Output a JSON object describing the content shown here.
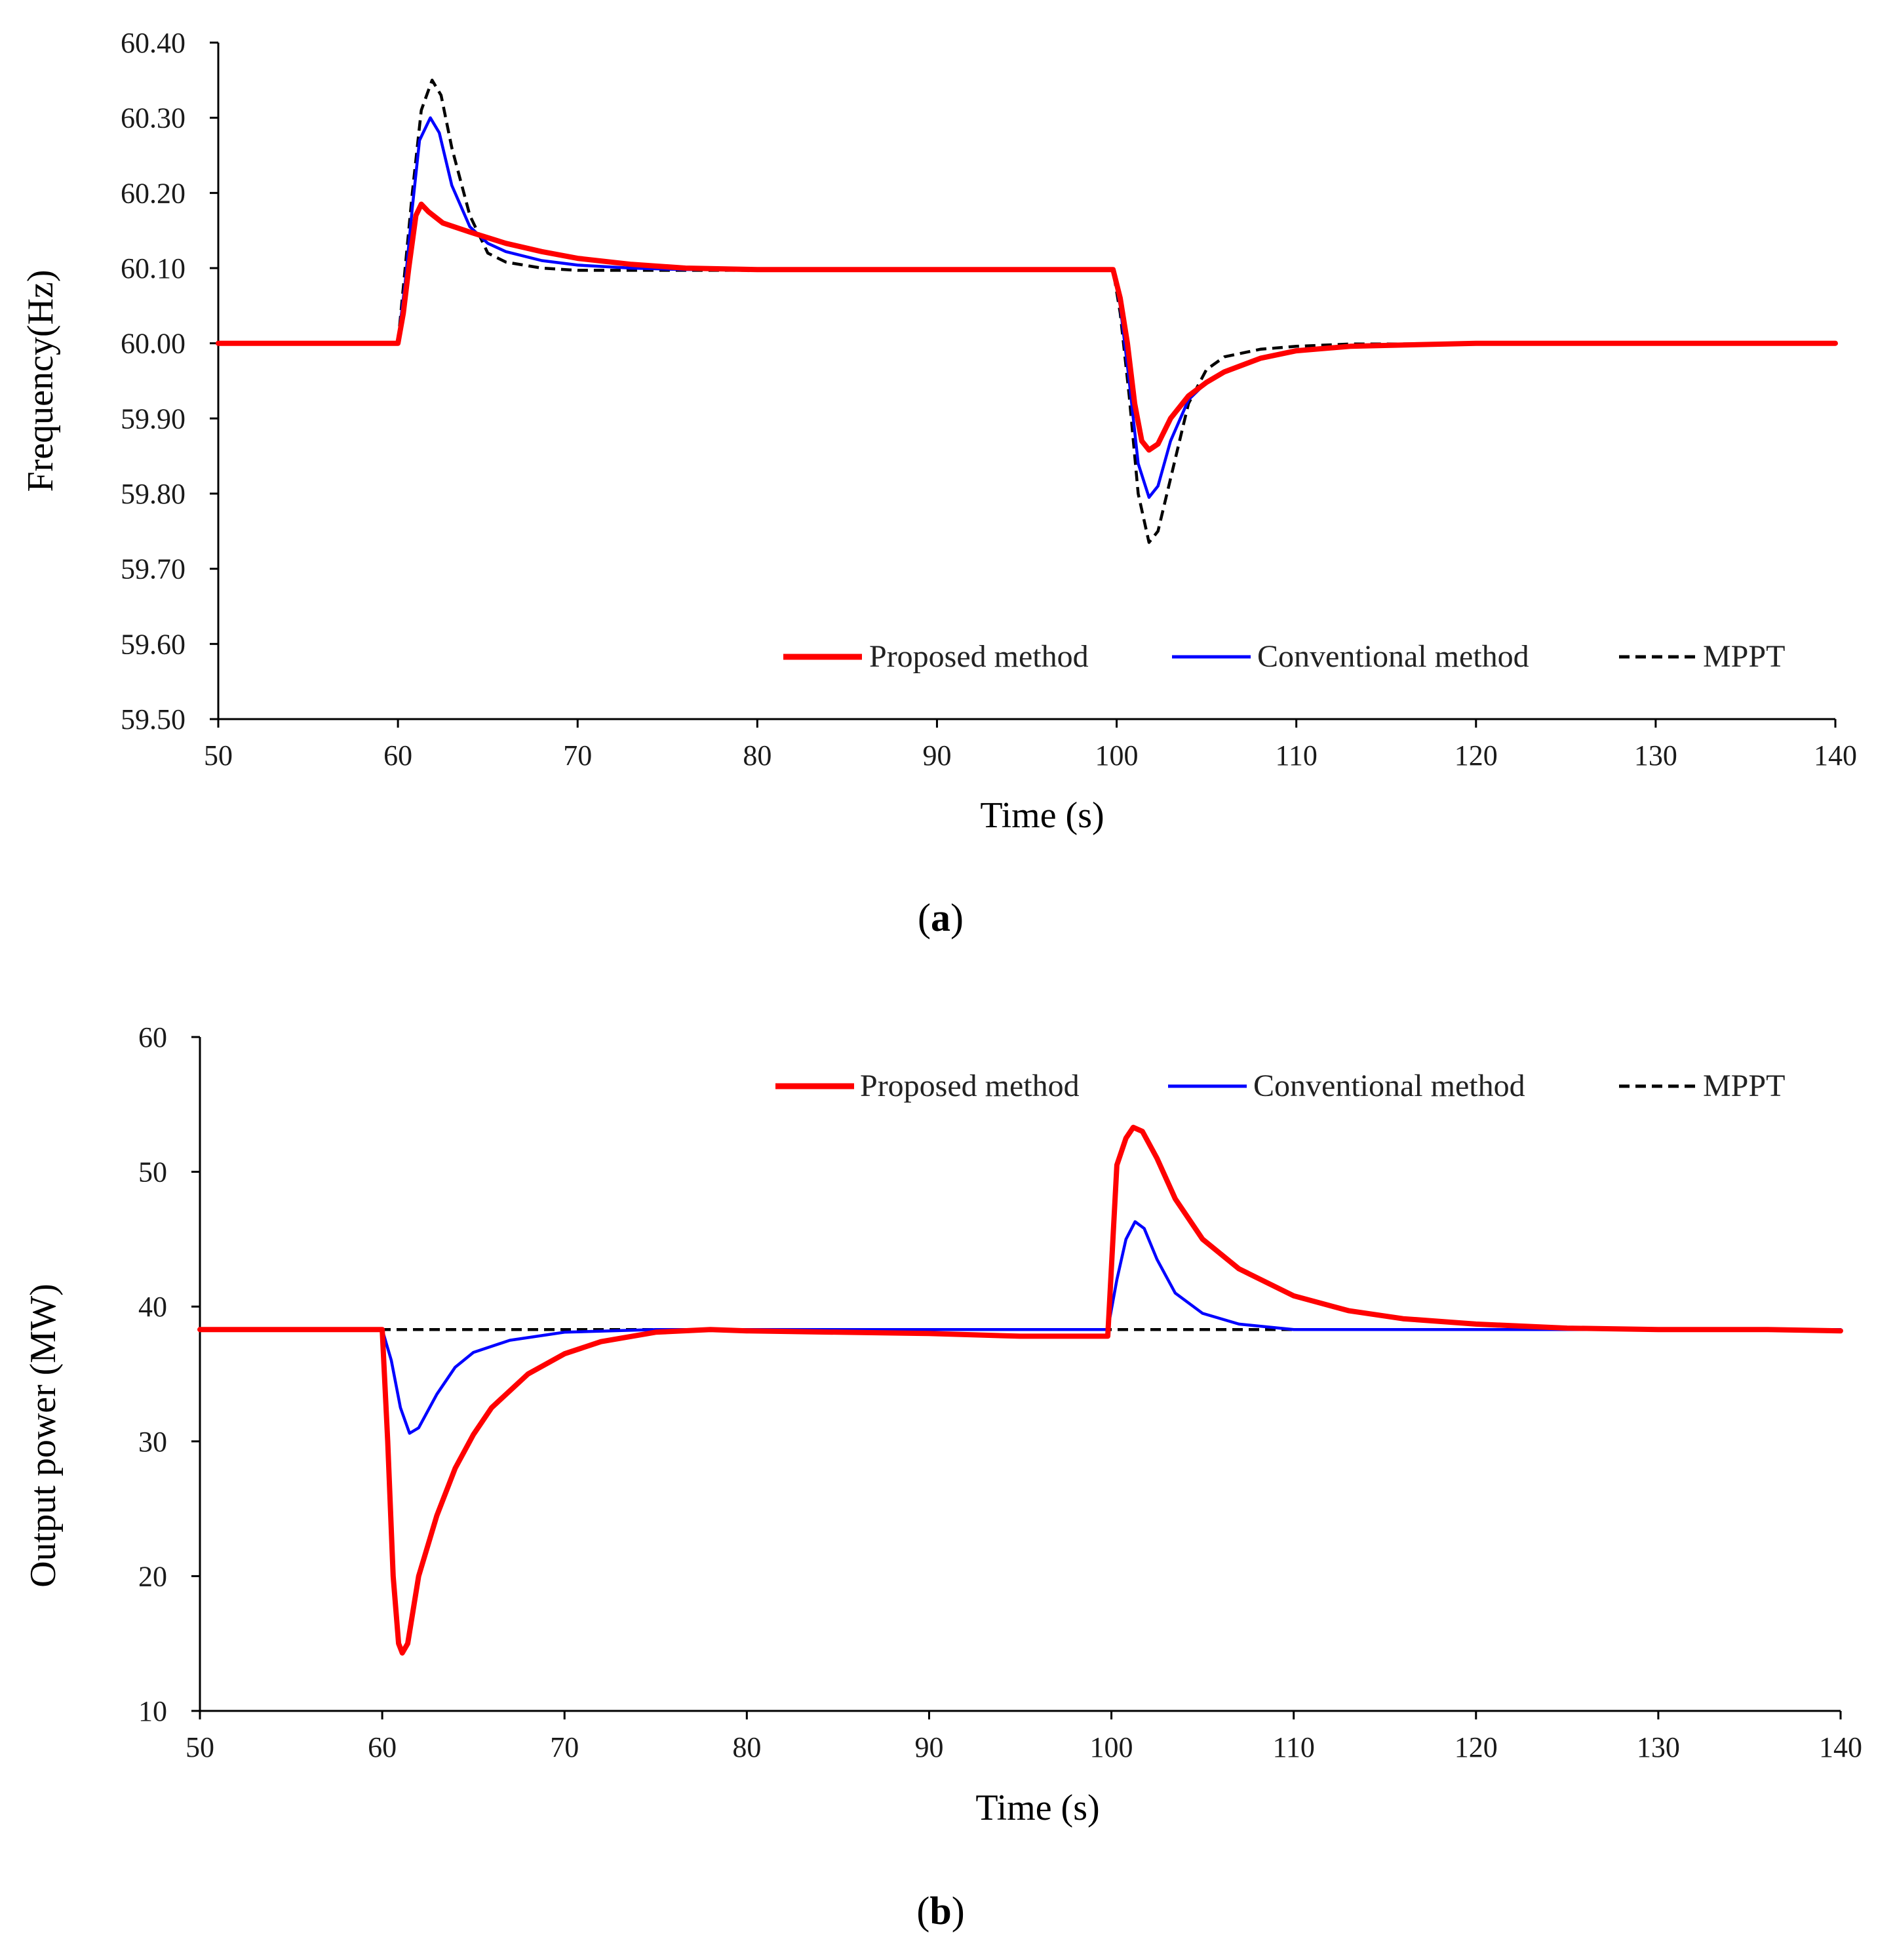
{
  "chart_data": [
    {
      "type": "line",
      "panel_label_open": "(",
      "panel_label": "a",
      "panel_label_close": ")",
      "xlabel": "Time (s)",
      "ylabel": "Frequency(Hz)",
      "xlim": [
        50,
        140
      ],
      "ylim": [
        59.5,
        60.4
      ],
      "x_ticks": [
        "50",
        "60",
        "70",
        "80",
        "90",
        "100",
        "110",
        "120",
        "130",
        "140"
      ],
      "x_tick_values": [
        50,
        60,
        70,
        80,
        90,
        100,
        110,
        120,
        130,
        140
      ],
      "y_ticks": [
        "59.50",
        "59.60",
        "59.70",
        "59.80",
        "59.90",
        "60.00",
        "60.10",
        "60.20",
        "60.30",
        "60.40"
      ],
      "y_tick_values": [
        59.5,
        59.6,
        59.7,
        59.8,
        59.9,
        60.0,
        60.1,
        60.2,
        60.3,
        60.4
      ],
      "grid": false,
      "legend_position": "bottom-right",
      "series": [
        {
          "name": "Proposed method",
          "color": "#ff0000",
          "style": "solid-thick",
          "points": [
            [
              50,
              60.0
            ],
            [
              60,
              60.0
            ],
            [
              60.3,
              60.04
            ],
            [
              60.6,
              60.1
            ],
            [
              61,
              60.17
            ],
            [
              61.3,
              60.185
            ],
            [
              61.7,
              60.175
            ],
            [
              62.5,
              60.16
            ],
            [
              64,
              60.148
            ],
            [
              66,
              60.133
            ],
            [
              68,
              60.122
            ],
            [
              70,
              60.113
            ],
            [
              73,
              60.105
            ],
            [
              76,
              60.1
            ],
            [
              80,
              60.098
            ],
            [
              90,
              60.098
            ],
            [
              99.8,
              60.098
            ],
            [
              100.2,
              60.06
            ],
            [
              100.6,
              60.0
            ],
            [
              101,
              59.92
            ],
            [
              101.4,
              59.87
            ],
            [
              101.8,
              59.858
            ],
            [
              102.3,
              59.866
            ],
            [
              103,
              59.9
            ],
            [
              104,
              59.93
            ],
            [
              105,
              59.948
            ],
            [
              106,
              59.962
            ],
            [
              108,
              59.98
            ],
            [
              110,
              59.99
            ],
            [
              113,
              59.996
            ],
            [
              120,
              60.0
            ],
            [
              140,
              60.0
            ]
          ]
        },
        {
          "name": "Conventional method",
          "color": "#0000ff",
          "style": "solid",
          "points": [
            [
              50,
              60.0
            ],
            [
              60,
              60.0
            ],
            [
              60.4,
              60.08
            ],
            [
              60.8,
              60.18
            ],
            [
              61.2,
              60.27
            ],
            [
              61.8,
              60.3
            ],
            [
              62.3,
              60.28
            ],
            [
              63,
              60.21
            ],
            [
              64,
              60.155
            ],
            [
              65,
              60.133
            ],
            [
              66,
              60.122
            ],
            [
              68,
              60.11
            ],
            [
              70,
              60.104
            ],
            [
              73,
              60.1
            ],
            [
              76,
              60.098
            ],
            [
              90,
              60.098
            ],
            [
              99.8,
              60.098
            ],
            [
              100.2,
              60.05
            ],
            [
              100.7,
              59.95
            ],
            [
              101.2,
              59.84
            ],
            [
              101.8,
              59.795
            ],
            [
              102.3,
              59.81
            ],
            [
              103,
              59.87
            ],
            [
              104,
              59.925
            ],
            [
              105,
              59.948
            ],
            [
              106,
              59.962
            ],
            [
              108,
              59.98
            ],
            [
              110,
              59.99
            ],
            [
              113,
              59.996
            ],
            [
              120,
              60.0
            ],
            [
              140,
              60.0
            ]
          ]
        },
        {
          "name": "MPPT",
          "color": "#000000",
          "style": "dashed",
          "points": [
            [
              50,
              60.0
            ],
            [
              60,
              60.0
            ],
            [
              60.4,
              60.1
            ],
            [
              60.8,
              60.2
            ],
            [
              61.3,
              60.31
            ],
            [
              61.9,
              60.35
            ],
            [
              62.4,
              60.33
            ],
            [
              63,
              60.26
            ],
            [
              64,
              60.17
            ],
            [
              65,
              60.12
            ],
            [
              66,
              60.108
            ],
            [
              68,
              60.1
            ],
            [
              70,
              60.097
            ],
            [
              90,
              60.097
            ],
            [
              99.8,
              60.097
            ],
            [
              100.2,
              60.04
            ],
            [
              100.7,
              59.93
            ],
            [
              101.2,
              59.8
            ],
            [
              101.8,
              59.735
            ],
            [
              102.3,
              59.75
            ],
            [
              103,
              59.82
            ],
            [
              104,
              59.92
            ],
            [
              105,
              59.965
            ],
            [
              106,
              59.982
            ],
            [
              108,
              59.992
            ],
            [
              110,
              59.996
            ],
            [
              113,
              59.999
            ],
            [
              140,
              60.0
            ]
          ]
        }
      ]
    },
    {
      "type": "line",
      "panel_label_open": "(",
      "panel_label": "b",
      "panel_label_close": ")",
      "xlabel": "Time (s)",
      "ylabel": "Output power (MW)",
      "xlim": [
        50,
        140
      ],
      "ylim": [
        10,
        60
      ],
      "x_ticks": [
        "50",
        "60",
        "70",
        "80",
        "90",
        "100",
        "110",
        "120",
        "130",
        "140"
      ],
      "x_tick_values": [
        50,
        60,
        70,
        80,
        90,
        100,
        110,
        120,
        130,
        140
      ],
      "y_ticks": [
        "10",
        "20",
        "30",
        "40",
        "50",
        "60"
      ],
      "y_tick_values": [
        10,
        20,
        30,
        40,
        50,
        60
      ],
      "grid": false,
      "legend_position": "top-right",
      "series": [
        {
          "name": "Proposed method",
          "color": "#ff0000",
          "style": "solid-thick",
          "points": [
            [
              50,
              38.3
            ],
            [
              60,
              38.3
            ],
            [
              60.3,
              30
            ],
            [
              60.6,
              20
            ],
            [
              60.9,
              15
            ],
            [
              61.1,
              14.3
            ],
            [
              61.4,
              15
            ],
            [
              62,
              20
            ],
            [
              63,
              24.5
            ],
            [
              64,
              28
            ],
            [
              65,
              30.5
            ],
            [
              66,
              32.5
            ],
            [
              68,
              35
            ],
            [
              70,
              36.5
            ],
            [
              72,
              37.4
            ],
            [
              75,
              38.1
            ],
            [
              78,
              38.3
            ],
            [
              80,
              38.2
            ],
            [
              85,
              38.1
            ],
            [
              90,
              38.0
            ],
            [
              95,
              37.8
            ],
            [
              99.8,
              37.8
            ],
            [
              100.3,
              50.5
            ],
            [
              100.8,
              52.5
            ],
            [
              101.2,
              53.3
            ],
            [
              101.7,
              53
            ],
            [
              102.5,
              51
            ],
            [
              103.5,
              48
            ],
            [
              105,
              45
            ],
            [
              107,
              42.8
            ],
            [
              110,
              40.8
            ],
            [
              113,
              39.7
            ],
            [
              116,
              39.1
            ],
            [
              120,
              38.7
            ],
            [
              125,
              38.4
            ],
            [
              130,
              38.3
            ],
            [
              136,
              38.3
            ],
            [
              140,
              38.2
            ]
          ]
        },
        {
          "name": "Conventional method",
          "color": "#0000ff",
          "style": "solid",
          "points": [
            [
              50,
              38.3
            ],
            [
              60,
              38.3
            ],
            [
              60.5,
              36
            ],
            [
              61,
              32.5
            ],
            [
              61.5,
              30.6
            ],
            [
              62,
              31
            ],
            [
              63,
              33.5
            ],
            [
              64,
              35.5
            ],
            [
              65,
              36.6
            ],
            [
              67,
              37.5
            ],
            [
              70,
              38.1
            ],
            [
              75,
              38.3
            ],
            [
              99.8,
              38.3
            ],
            [
              100.3,
              42
            ],
            [
              100.8,
              45
            ],
            [
              101.3,
              46.3
            ],
            [
              101.8,
              45.8
            ],
            [
              102.5,
              43.5
            ],
            [
              103.5,
              41
            ],
            [
              105,
              39.5
            ],
            [
              107,
              38.7
            ],
            [
              110,
              38.3
            ],
            [
              140,
              38.3
            ]
          ]
        },
        {
          "name": "MPPT",
          "color": "#000000",
          "style": "dashed",
          "points": [
            [
              50,
              38.3
            ],
            [
              140,
              38.3
            ]
          ]
        }
      ]
    }
  ]
}
